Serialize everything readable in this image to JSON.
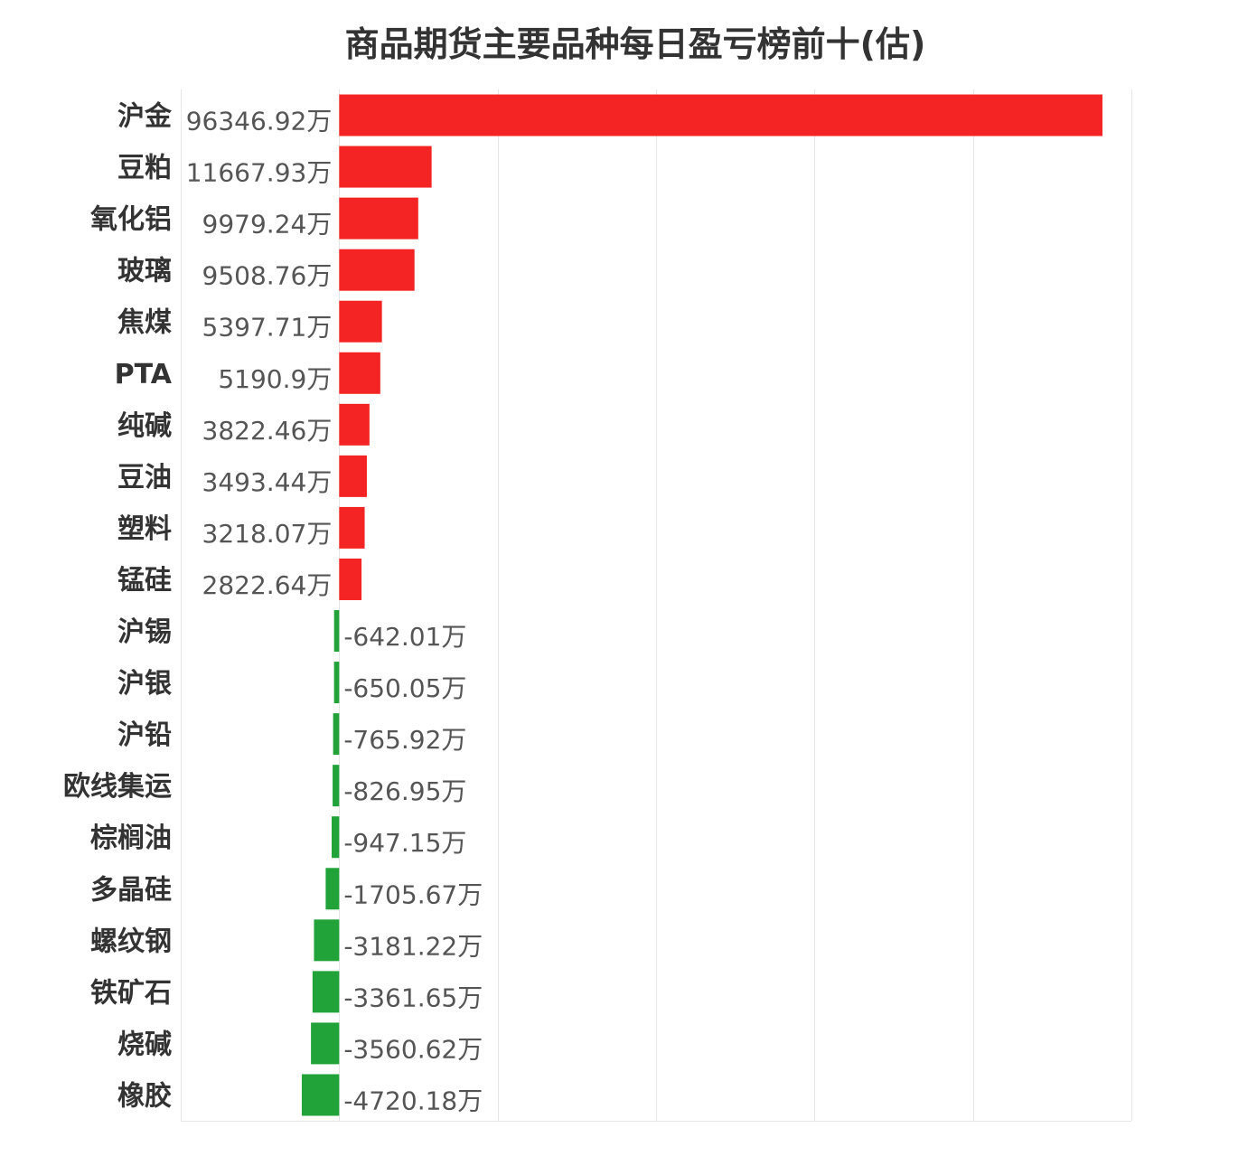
{
  "chart_data": {
    "type": "bar",
    "orientation": "horizontal",
    "title": "商品期货主要品种每日盈亏榜前十(估)",
    "unit": "万",
    "categories": [
      "沪金",
      "豆粕",
      "氧化铝",
      "玻璃",
      "焦煤",
      "PTA",
      "纯碱",
      "豆油",
      "塑料",
      "锰硅",
      "沪锡",
      "沪银",
      "沪铅",
      "欧线集运",
      "棕榈油",
      "多晶硅",
      "螺纹钢",
      "铁矿石",
      "烧碱",
      "橡胶"
    ],
    "values": [
      96346.92,
      11667.93,
      9979.24,
      9508.76,
      5397.71,
      5190.9,
      3822.46,
      3493.44,
      3218.07,
      2822.64,
      -642.01,
      -650.05,
      -765.92,
      -826.95,
      -947.15,
      -1705.67,
      -3181.22,
      -3361.65,
      -3560.62,
      -4720.18
    ],
    "value_labels": [
      "96346.92万",
      "11667.93万",
      "9979.24万",
      "9508.76万",
      "5397.71万",
      "5190.9万",
      "3822.46万",
      "3493.44万",
      "3218.07万",
      "2822.64万",
      "-642.01万",
      "-650.05万",
      "-765.92万",
      "-826.95万",
      "-947.15万",
      "-1705.67万",
      "-3181.22万",
      "-3361.65万",
      "-3560.62万",
      "-4720.18万"
    ],
    "xlim": [
      -20000,
      100000
    ],
    "grid_step": 20000,
    "grid": true,
    "colors": {
      "positive": "#f52424",
      "negative": "#22a33a"
    }
  }
}
